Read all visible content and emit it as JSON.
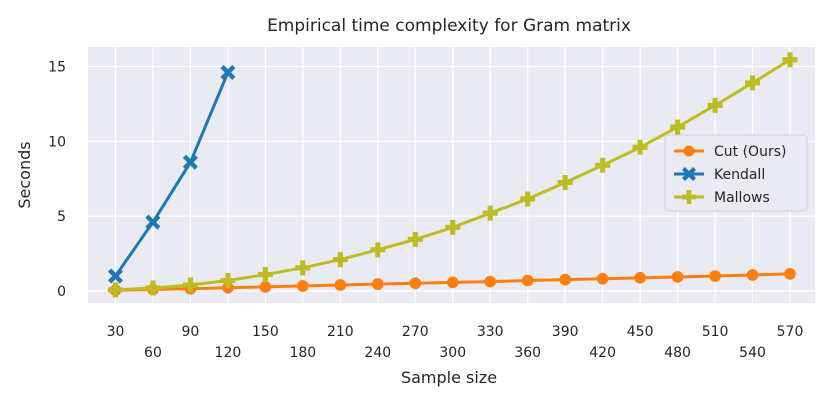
{
  "chart_data": {
    "type": "line",
    "title": "Empirical time complexity for Gram matrix",
    "xlabel": "Sample size",
    "ylabel": "Seconds",
    "x_ticks": [
      30,
      60,
      90,
      120,
      150,
      180,
      210,
      240,
      270,
      300,
      330,
      360,
      390,
      420,
      450,
      480,
      510,
      540,
      570
    ],
    "y_ticks": [
      0,
      5,
      10,
      15
    ],
    "xlim": [
      8,
      590
    ],
    "ylim": [
      -0.8,
      16.3
    ],
    "grid": true,
    "legend_position": "center-right",
    "series": [
      {
        "name": "Cut (Ours)",
        "color": "#ff7f0e",
        "marker": "circle",
        "x": [
          30,
          60,
          90,
          120,
          150,
          180,
          210,
          240,
          270,
          300,
          330,
          360,
          390,
          420,
          450,
          480,
          510,
          540,
          570
        ],
        "y": [
          0.05,
          0.1,
          0.15,
          0.22,
          0.28,
          0.34,
          0.4,
          0.46,
          0.52,
          0.58,
          0.63,
          0.7,
          0.76,
          0.82,
          0.88,
          0.94,
          1.0,
          1.07,
          1.15
        ]
      },
      {
        "name": "Kendall",
        "color": "#1f77b4",
        "marker": "x",
        "x": [
          30,
          60,
          90,
          120
        ],
        "y": [
          1.0,
          4.6,
          8.6,
          14.6
        ]
      },
      {
        "name": "Mallows",
        "color": "#bcbd22",
        "marker": "plus",
        "x": [
          30,
          60,
          90,
          120,
          150,
          180,
          210,
          240,
          270,
          300,
          330,
          360,
          390,
          420,
          450,
          480,
          510,
          540,
          570
        ],
        "y": [
          0.08,
          0.2,
          0.4,
          0.7,
          1.1,
          1.55,
          2.1,
          2.75,
          3.45,
          4.25,
          5.2,
          6.15,
          7.25,
          8.4,
          9.6,
          10.95,
          12.4,
          13.9,
          15.45
        ]
      }
    ]
  }
}
